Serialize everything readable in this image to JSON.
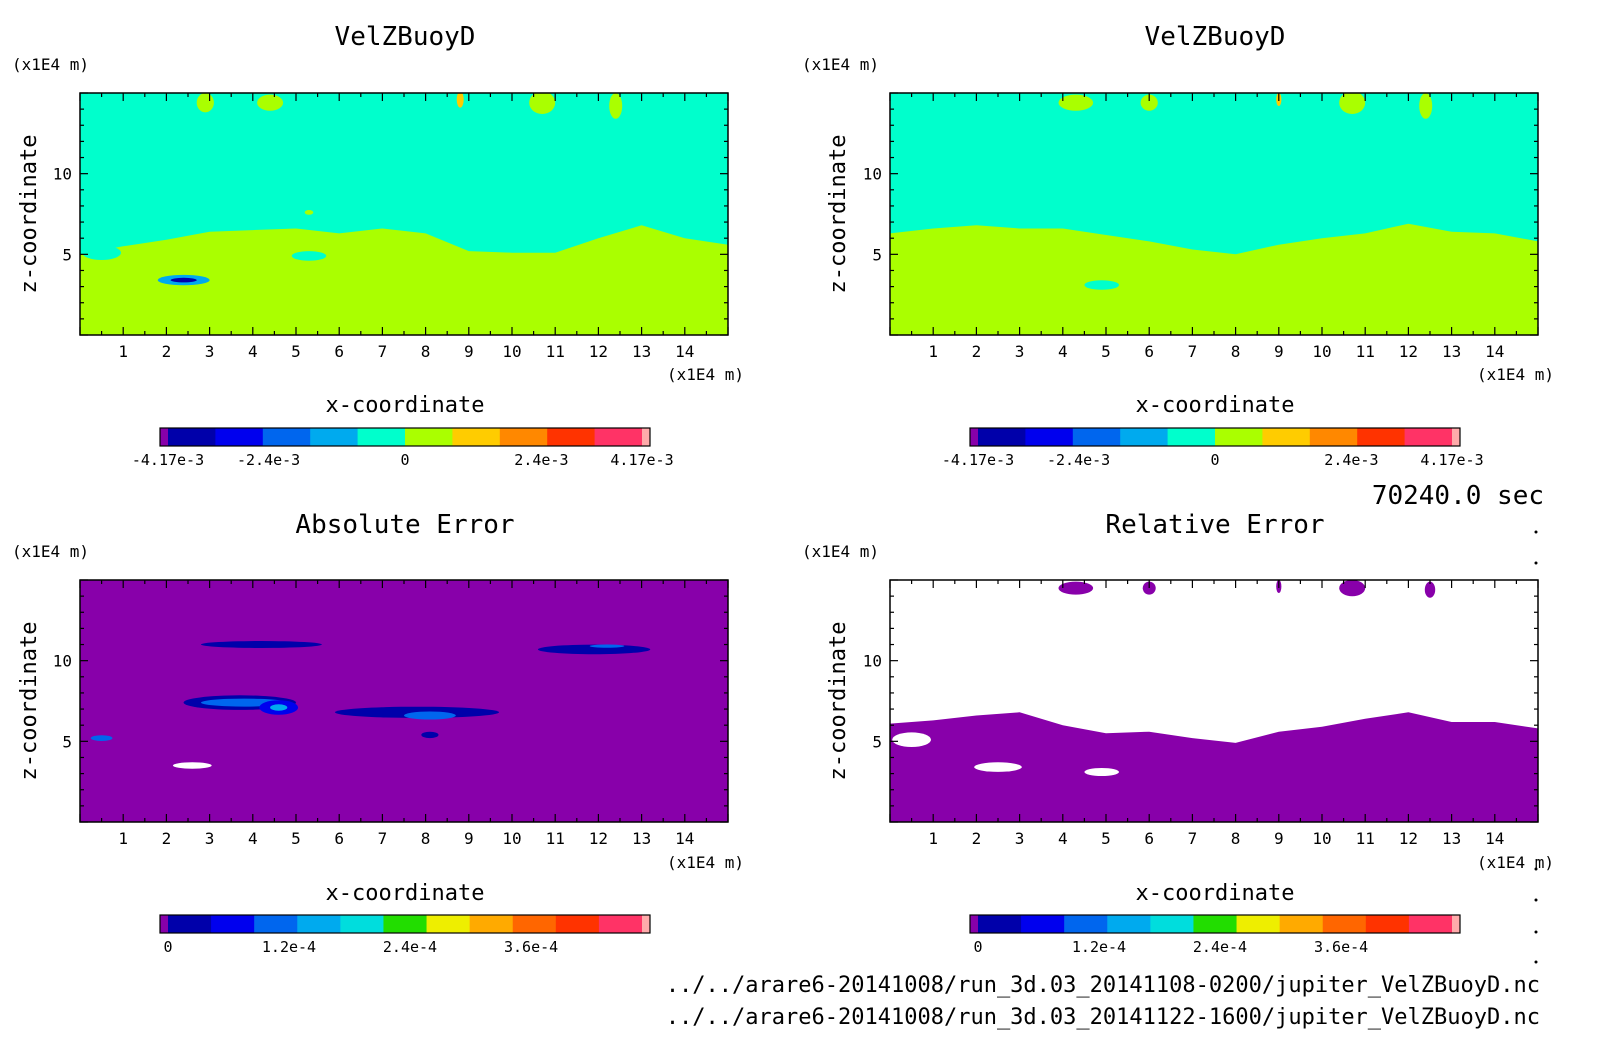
{
  "time_label": "70240.0 sec",
  "file_paths": [
    "../../arare6-20141008/run_3d.03_20141108-0200/jupiter_VelZBuoyD.nc",
    "../../arare6-20141008/run_3d.03_20141122-1600/jupiter_VelZBuoyD.nc"
  ],
  "colors": {
    "cyan_fill": "#00ffcc",
    "green_fill": "#aaff00",
    "purple_fill": "#8800aa",
    "white_fill": "#ffffff"
  },
  "chart_data": [
    {
      "type": "heatmap",
      "title": "VelZBuoyD",
      "xlabel": "x-coordinate",
      "ylabel": "z-coordinate",
      "x_unit": "(x1E4 m)",
      "y_unit": "(x1E4 m)",
      "xlim": [
        0,
        15
      ],
      "ylim": [
        0,
        15
      ],
      "x_ticks": [
        "1",
        "2",
        "3",
        "4",
        "5",
        "6",
        "7",
        "8",
        "9",
        "10",
        "11",
        "12",
        "13",
        "14"
      ],
      "y_ticks": [
        "5",
        "10"
      ],
      "colorbar": {
        "colors": [
          "#8800aa",
          "#0000aa",
          "#0000ee",
          "#0066ee",
          "#00aaee",
          "#00ffcc",
          "#aaff00",
          "#ffcc00",
          "#ff8800",
          "#ff3300",
          "#ff3366",
          "#ffaaaa"
        ],
        "labels": [
          "-4.17e-3",
          "-2.4e-3",
          "0",
          "2.4e-3",
          "4.17e-3"
        ],
        "label_values": [
          -0.00417,
          -0.0024,
          0,
          0.0024,
          0.00417
        ],
        "range": [
          -0.00417,
          0.00417
        ]
      },
      "background": "#00ffcc",
      "boundary_z": [
        5.0,
        5.5,
        5.9,
        6.4,
        6.5,
        6.6,
        6.3,
        6.6,
        6.3,
        5.2,
        5.1,
        5.1,
        6.0,
        6.8,
        6.0,
        5.6
      ],
      "lower_region_color": "#aaff00",
      "features": [
        {
          "kind": "blob",
          "x": 0.5,
          "z": 5.1,
          "rx": 0.45,
          "rz": 0.45,
          "color": "#00ffcc"
        },
        {
          "kind": "blob",
          "x": 5.3,
          "z": 4.9,
          "rx": 0.4,
          "rz": 0.3,
          "color": "#00ffcc"
        },
        {
          "kind": "blob",
          "x": 2.4,
          "z": 3.4,
          "rx": 0.6,
          "rz": 0.32,
          "color": "#00aaee"
        },
        {
          "kind": "blob",
          "x": 2.4,
          "z": 3.4,
          "rx": 0.3,
          "rz": 0.14,
          "color": "#0000aa"
        },
        {
          "kind": "blob",
          "x": 2.9,
          "z": 14.4,
          "rx": 0.2,
          "rz": 0.6,
          "color": "#aaff00"
        },
        {
          "kind": "blob",
          "x": 4.4,
          "z": 14.4,
          "rx": 0.3,
          "rz": 0.5,
          "color": "#aaff00"
        },
        {
          "kind": "blob",
          "x": 8.8,
          "z": 14.6,
          "rx": 0.08,
          "rz": 0.5,
          "color": "#ffcc00"
        },
        {
          "kind": "blob",
          "x": 10.7,
          "z": 14.4,
          "rx": 0.3,
          "rz": 0.7,
          "color": "#aaff00"
        },
        {
          "kind": "blob",
          "x": 12.4,
          "z": 14.2,
          "rx": 0.15,
          "rz": 0.8,
          "color": "#aaff00"
        },
        {
          "kind": "blob",
          "x": 5.3,
          "z": 7.6,
          "rx": 0.1,
          "rz": 0.15,
          "color": "#aaff00"
        }
      ]
    },
    {
      "type": "heatmap",
      "title": "VelZBuoyD",
      "xlabel": "x-coordinate",
      "ylabel": "z-coordinate",
      "x_unit": "(x1E4 m)",
      "y_unit": "(x1E4 m)",
      "xlim": [
        0,
        15
      ],
      "ylim": [
        0,
        15
      ],
      "x_ticks": [
        "1",
        "2",
        "3",
        "4",
        "5",
        "6",
        "7",
        "8",
        "9",
        "10",
        "11",
        "12",
        "13",
        "14"
      ],
      "y_ticks": [
        "5",
        "10"
      ],
      "colorbar": {
        "colors": [
          "#8800aa",
          "#0000aa",
          "#0000ee",
          "#0066ee",
          "#00aaee",
          "#00ffcc",
          "#aaff00",
          "#ffcc00",
          "#ff8800",
          "#ff3300",
          "#ff3366",
          "#ffaaaa"
        ],
        "labels": [
          "-4.17e-3",
          "-2.4e-3",
          "0",
          "2.4e-3",
          "4.17e-3"
        ],
        "label_values": [
          -0.00417,
          -0.0024,
          0,
          0.0024,
          0.00417
        ],
        "range": [
          -0.00417,
          0.00417
        ]
      },
      "background": "#00ffcc",
      "boundary_z": [
        6.3,
        6.6,
        6.8,
        6.6,
        6.6,
        6.2,
        5.8,
        5.3,
        5.0,
        5.6,
        6.0,
        6.3,
        6.9,
        6.4,
        6.3,
        5.8
      ],
      "lower_region_color": "#aaff00",
      "features": [
        {
          "kind": "blob",
          "x": 4.9,
          "z": 3.1,
          "rx": 0.4,
          "rz": 0.3,
          "color": "#00ffcc"
        },
        {
          "kind": "blob",
          "x": 4.3,
          "z": 14.4,
          "rx": 0.4,
          "rz": 0.5,
          "color": "#aaff00"
        },
        {
          "kind": "blob",
          "x": 6.0,
          "z": 14.4,
          "rx": 0.2,
          "rz": 0.5,
          "color": "#aaff00"
        },
        {
          "kind": "blob",
          "x": 9.0,
          "z": 14.6,
          "rx": 0.06,
          "rz": 0.4,
          "color": "#ffcc00"
        },
        {
          "kind": "blob",
          "x": 10.7,
          "z": 14.4,
          "rx": 0.3,
          "rz": 0.7,
          "color": "#aaff00"
        },
        {
          "kind": "blob",
          "x": 12.4,
          "z": 14.2,
          "rx": 0.15,
          "rz": 0.8,
          "color": "#aaff00"
        }
      ]
    },
    {
      "type": "heatmap",
      "title": "Absolute Error",
      "xlabel": "x-coordinate",
      "ylabel": "z-coordinate",
      "x_unit": "(x1E4 m)",
      "y_unit": "(x1E4 m)",
      "xlim": [
        0,
        15
      ],
      "ylim": [
        0,
        15
      ],
      "x_ticks": [
        "1",
        "2",
        "3",
        "4",
        "5",
        "6",
        "7",
        "8",
        "9",
        "10",
        "11",
        "12",
        "13",
        "14"
      ],
      "y_ticks": [
        "5",
        "10"
      ],
      "colorbar": {
        "colors": [
          "#8800aa",
          "#0000aa",
          "#0000ee",
          "#0066ee",
          "#00aaee",
          "#00dddd",
          "#22dd00",
          "#eeee00",
          "#ffaa00",
          "#ff6600",
          "#ff3300",
          "#ff3366",
          "#ffaaaa"
        ],
        "labels": [
          "0",
          "1.2e-4",
          "2.4e-4",
          "3.6e-4"
        ],
        "label_values": [
          0,
          0.00012,
          0.00024,
          0.00036
        ],
        "range": [
          0,
          0.00047
        ]
      },
      "background": "#8800aa",
      "boundary_z": [],
      "lower_region_color": "#8800aa",
      "features": [
        {
          "kind": "blob",
          "x": 4.2,
          "z": 11.0,
          "rx": 1.4,
          "rz": 0.22,
          "color": "#0000aa"
        },
        {
          "kind": "blob",
          "x": 11.9,
          "z": 10.7,
          "rx": 1.3,
          "rz": 0.3,
          "color": "#0000aa"
        },
        {
          "kind": "blob",
          "x": 12.2,
          "z": 10.9,
          "rx": 0.4,
          "rz": 0.1,
          "color": "#0066ee"
        },
        {
          "kind": "blob",
          "x": 3.7,
          "z": 7.4,
          "rx": 1.3,
          "rz": 0.45,
          "color": "#0000aa"
        },
        {
          "kind": "blob",
          "x": 3.8,
          "z": 7.4,
          "rx": 1.0,
          "rz": 0.25,
          "color": "#0066ee"
        },
        {
          "kind": "blob",
          "x": 4.6,
          "z": 7.1,
          "rx": 0.45,
          "rz": 0.45,
          "color": "#0000ee"
        },
        {
          "kind": "blob",
          "x": 4.6,
          "z": 7.1,
          "rx": 0.2,
          "rz": 0.2,
          "color": "#00aaee"
        },
        {
          "kind": "blob",
          "x": 7.8,
          "z": 6.8,
          "rx": 1.9,
          "rz": 0.35,
          "color": "#0000aa"
        },
        {
          "kind": "blob",
          "x": 8.1,
          "z": 6.6,
          "rx": 0.6,
          "rz": 0.25,
          "color": "#0066ee"
        },
        {
          "kind": "blob",
          "x": 8.1,
          "z": 5.4,
          "rx": 0.2,
          "rz": 0.2,
          "color": "#0000aa"
        },
        {
          "kind": "blob",
          "x": 0.5,
          "z": 5.2,
          "rx": 0.25,
          "rz": 0.18,
          "color": "#0066ee"
        },
        {
          "kind": "blob",
          "x": 2.6,
          "z": 3.5,
          "rx": 0.45,
          "rz": 0.2,
          "color": "#ffffff"
        }
      ]
    },
    {
      "type": "heatmap",
      "title": "Relative Error",
      "xlabel": "x-coordinate",
      "ylabel": "z-coordinate",
      "x_unit": "(x1E4 m)",
      "y_unit": "(x1E4 m)",
      "xlim": [
        0,
        15
      ],
      "ylim": [
        0,
        15
      ],
      "x_ticks": [
        "1",
        "2",
        "3",
        "4",
        "5",
        "6",
        "7",
        "8",
        "9",
        "10",
        "11",
        "12",
        "13",
        "14"
      ],
      "y_ticks": [
        "5",
        "10"
      ],
      "colorbar": {
        "colors": [
          "#8800aa",
          "#0000aa",
          "#0000ee",
          "#0066ee",
          "#00aaee",
          "#00dddd",
          "#22dd00",
          "#eeee00",
          "#ffaa00",
          "#ff6600",
          "#ff3300",
          "#ff3366",
          "#ffaaaa"
        ],
        "labels": [
          "0",
          "1.2e-4",
          "2.4e-4",
          "3.6e-4"
        ],
        "label_values": [
          0,
          0.00012,
          0.00024,
          0.00036
        ],
        "range": [
          0,
          0.00047
        ]
      },
      "background": "#ffffff",
      "boundary_z": [
        6.1,
        6.3,
        6.6,
        6.8,
        6.0,
        5.5,
        5.6,
        5.2,
        4.9,
        5.6,
        5.9,
        6.4,
        6.8,
        6.2,
        6.2,
        5.8
      ],
      "lower_region_color": "#8800aa",
      "features": [
        {
          "kind": "blob",
          "x": 0.5,
          "z": 5.1,
          "rx": 0.45,
          "rz": 0.45,
          "color": "#ffffff"
        },
        {
          "kind": "blob",
          "x": 2.5,
          "z": 3.4,
          "rx": 0.55,
          "rz": 0.3,
          "color": "#ffffff"
        },
        {
          "kind": "blob",
          "x": 4.9,
          "z": 3.1,
          "rx": 0.4,
          "rz": 0.25,
          "color": "#ffffff"
        },
        {
          "kind": "blob",
          "x": 4.3,
          "z": 14.5,
          "rx": 0.4,
          "rz": 0.4,
          "color": "#8800aa"
        },
        {
          "kind": "blob",
          "x": 6.0,
          "z": 14.5,
          "rx": 0.15,
          "rz": 0.4,
          "color": "#8800aa"
        },
        {
          "kind": "blob",
          "x": 9.0,
          "z": 14.6,
          "rx": 0.06,
          "rz": 0.4,
          "color": "#8800aa"
        },
        {
          "kind": "blob",
          "x": 10.7,
          "z": 14.5,
          "rx": 0.3,
          "rz": 0.5,
          "color": "#8800aa"
        },
        {
          "kind": "blob",
          "x": 12.5,
          "z": 14.4,
          "rx": 0.12,
          "rz": 0.5,
          "color": "#8800aa"
        }
      ]
    }
  ]
}
